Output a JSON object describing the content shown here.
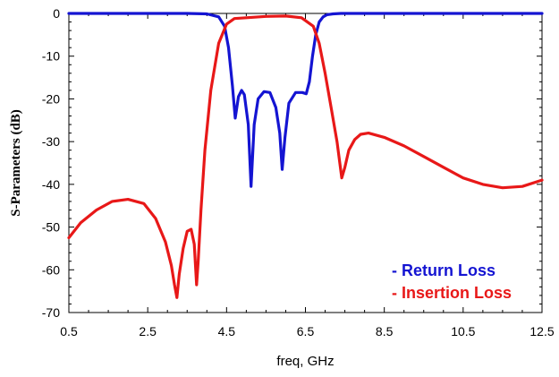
{
  "chart_data": {
    "type": "line",
    "title": "",
    "xlabel": "freq, GHz",
    "ylabel": "S-Parameters (dB)",
    "xlim": [
      0.5,
      12.5
    ],
    "ylim": [
      -70,
      0
    ],
    "xticks": [
      0.5,
      2.5,
      4.5,
      6.5,
      8.5,
      10.5,
      12.5
    ],
    "xtick_labels": [
      "0.5",
      "2.5",
      "4.5",
      "6.5",
      "8.5",
      "10.5",
      "12.5"
    ],
    "yticks": [
      0,
      -10,
      -20,
      -30,
      -40,
      -50,
      -60,
      -70
    ],
    "ytick_labels": [
      "0",
      "-10",
      "-20",
      "-30",
      "-40",
      "-50",
      "-60",
      "-70"
    ],
    "grid": false,
    "legend_position": "bottom-right",
    "series": [
      {
        "name": "- Return Loss",
        "color": "#1414d2",
        "x": [
          0.5,
          2.0,
          3.5,
          4.0,
          4.3,
          4.45,
          4.55,
          4.65,
          4.72,
          4.8,
          4.88,
          4.95,
          5.05,
          5.12,
          5.2,
          5.3,
          5.45,
          5.6,
          5.75,
          5.85,
          5.91,
          5.98,
          6.08,
          6.25,
          6.42,
          6.52,
          6.6,
          6.68,
          6.76,
          6.85,
          6.95,
          7.05,
          7.2,
          7.4,
          8.0,
          10.0,
          12.5
        ],
        "y": [
          0,
          0,
          0,
          -0.1,
          -0.8,
          -3,
          -8,
          -17,
          -24.5,
          -19.5,
          -18,
          -19,
          -26,
          -40.5,
          -26,
          -20,
          -18.3,
          -18.5,
          -22,
          -28,
          -36.5,
          -29,
          -21,
          -18.5,
          -18.5,
          -18.8,
          -16,
          -10,
          -5,
          -2,
          -0.8,
          -0.3,
          -0.1,
          0,
          0,
          0,
          0
        ]
      },
      {
        "name": "- Insertion Loss",
        "color": "#e81818",
        "x": [
          0.5,
          0.8,
          1.2,
          1.6,
          2.0,
          2.4,
          2.7,
          2.95,
          3.1,
          3.18,
          3.24,
          3.3,
          3.4,
          3.5,
          3.6,
          3.68,
          3.74,
          3.78,
          3.85,
          3.95,
          4.1,
          4.3,
          4.5,
          4.7,
          5.0,
          5.5,
          6.0,
          6.4,
          6.7,
          6.85,
          7.0,
          7.15,
          7.3,
          7.42,
          7.5,
          7.6,
          7.75,
          7.9,
          8.1,
          8.5,
          9.0,
          9.5,
          10.0,
          10.5,
          11.0,
          11.5,
          12.0,
          12.5
        ],
        "y": [
          -52.5,
          -49,
          -46,
          -44,
          -43.5,
          -44.5,
          -48,
          -53.5,
          -59,
          -63.5,
          -66.5,
          -61,
          -55,
          -51,
          -50.5,
          -54,
          -63.5,
          -58,
          -46,
          -32,
          -18,
          -7,
          -2.5,
          -1.2,
          -1,
          -0.7,
          -0.6,
          -1,
          -3,
          -7,
          -14,
          -22,
          -30,
          -38.5,
          -36,
          -32,
          -29.5,
          -28.3,
          -28,
          -29,
          -31,
          -33.5,
          -36,
          -38.5,
          -40,
          -40.8,
          -40.5,
          -39
        ]
      }
    ]
  }
}
